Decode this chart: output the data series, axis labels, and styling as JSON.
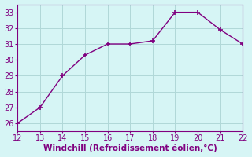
{
  "x": [
    12,
    13,
    14,
    15,
    16,
    17,
    18,
    19,
    20,
    21,
    22
  ],
  "y": [
    26.0,
    27.0,
    29.0,
    30.3,
    31.0,
    31.0,
    31.2,
    33.0,
    33.0,
    31.9,
    31.0
  ],
  "line_color": "#800080",
  "marker": "+",
  "marker_size": 4,
  "marker_linewidth": 1.2,
  "xlabel": "Windchill (Refroidissement éolien,°C)",
  "xlim": [
    12,
    22
  ],
  "ylim": [
    25.5,
    33.5
  ],
  "xticks": [
    12,
    13,
    14,
    15,
    16,
    17,
    18,
    19,
    20,
    21,
    22
  ],
  "yticks": [
    26,
    27,
    28,
    29,
    30,
    31,
    32,
    33
  ],
  "bg_color": "#d6f5f5",
  "grid_color": "#b0d8d8",
  "xlabel_fontsize": 7.5,
  "tick_fontsize": 7,
  "line_width": 1.0
}
